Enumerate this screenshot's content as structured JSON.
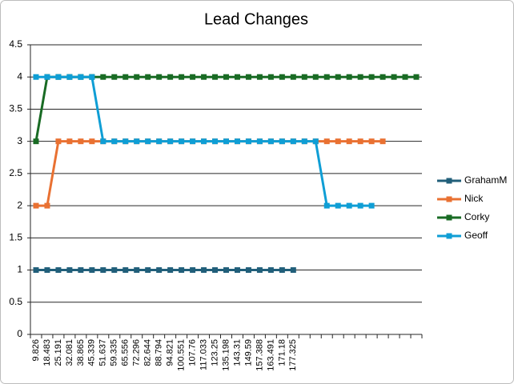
{
  "chart_data": {
    "type": "line",
    "title": "Lead Changes",
    "categories": [
      "9.826",
      "18.483",
      "25.191",
      "32.081",
      "38.865",
      "45.339",
      "51.637",
      "59.335",
      "65.556",
      "72.296",
      "82.644",
      "88.794",
      "94.821",
      "100.551",
      "107.76",
      "117.033",
      "123.25",
      "135.198",
      "143.31",
      "149.59",
      "157.388",
      "163.491",
      "171.18",
      "177.325",
      null,
      null,
      null,
      null,
      null,
      null,
      null,
      null,
      null,
      null,
      null
    ],
    "series": [
      {
        "name": "GrahamM",
        "color": "#215f7a",
        "values": [
          1,
          1,
          1,
          1,
          1,
          1,
          1,
          1,
          1,
          1,
          1,
          1,
          1,
          1,
          1,
          1,
          1,
          1,
          1,
          1,
          1,
          1,
          1,
          1,
          null,
          null,
          null,
          null,
          null,
          null,
          null,
          null,
          null,
          null,
          null
        ]
      },
      {
        "name": "Nick",
        "color": "#e97132",
        "values": [
          2,
          2,
          3,
          3,
          3,
          3,
          3,
          3,
          3,
          3,
          3,
          3,
          3,
          3,
          3,
          3,
          3,
          3,
          3,
          3,
          3,
          3,
          3,
          3,
          3,
          3,
          3,
          3,
          3,
          3,
          3,
          3,
          null,
          null,
          null
        ]
      },
      {
        "name": "Corky",
        "color": "#196b24",
        "values": [
          3,
          4,
          4,
          4,
          4,
          4,
          4,
          4,
          4,
          4,
          4,
          4,
          4,
          4,
          4,
          4,
          4,
          4,
          4,
          4,
          4,
          4,
          4,
          4,
          4,
          4,
          4,
          4,
          4,
          4,
          4,
          4,
          4,
          4,
          4
        ]
      },
      {
        "name": "Geoff",
        "color": "#0f9ed5",
        "values": [
          4,
          4,
          4,
          4,
          4,
          4,
          3,
          3,
          3,
          3,
          3,
          3,
          3,
          3,
          3,
          3,
          3,
          3,
          3,
          3,
          3,
          3,
          3,
          3,
          3,
          3,
          2,
          2,
          2,
          2,
          2,
          null,
          null,
          null,
          null
        ]
      }
    ],
    "ylim": [
      0,
      4.5
    ],
    "yticks": [
      0,
      0.5,
      1,
      1.5,
      2,
      2.5,
      3,
      3.5,
      4,
      4.5
    ],
    "grid": true,
    "legend": "right"
  }
}
